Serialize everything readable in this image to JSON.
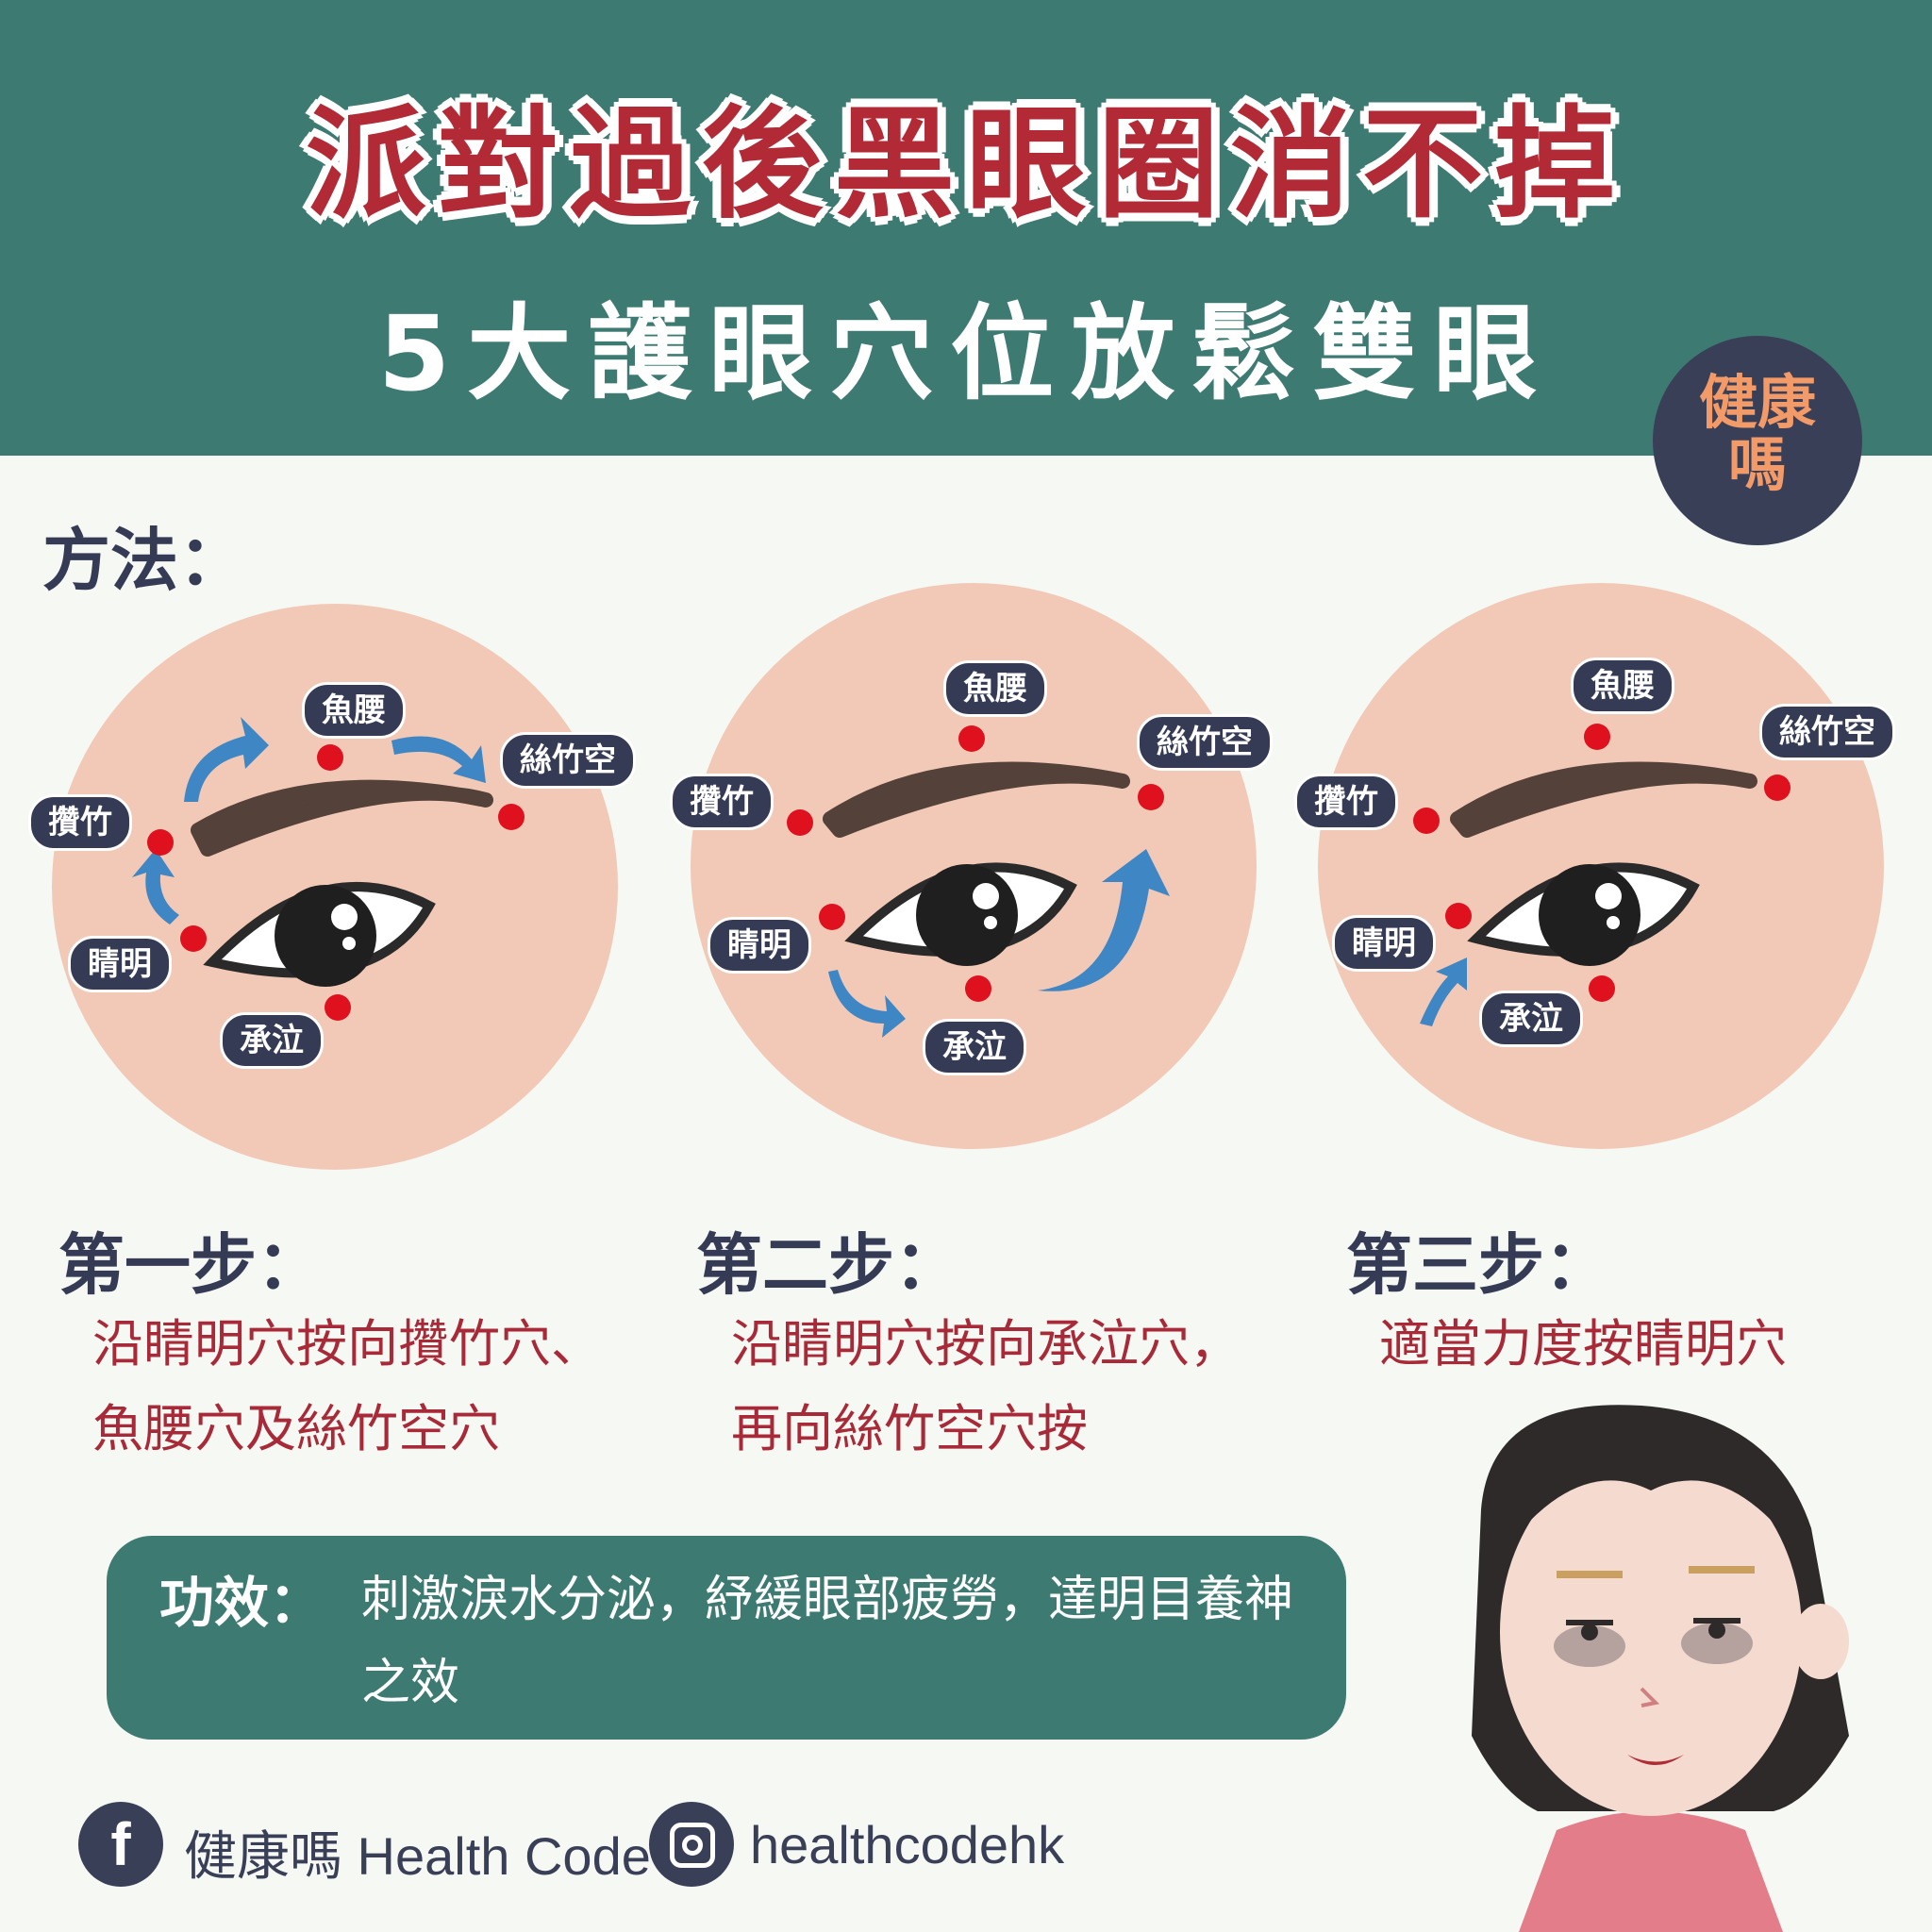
{
  "header": {
    "title": "派對過後黑眼圈消不掉",
    "subtitle": "5大護眼穴位放鬆雙眼"
  },
  "logo": {
    "line1": "健康",
    "line2": "嗎"
  },
  "method_label": "方法：",
  "acupoints": {
    "yuyao": "魚腰",
    "sizhukong": "絲竹空",
    "zanzhu": "攢竹",
    "jingming": "睛明",
    "chengqi": "承泣"
  },
  "steps": [
    {
      "title": "第一步：",
      "desc": [
        "沿睛明穴按向攢竹穴、",
        "魚腰穴及絲竹空穴"
      ]
    },
    {
      "title": "第二步：",
      "desc": [
        "沿睛明穴按向承泣穴，",
        "再向絲竹空穴按"
      ]
    },
    {
      "title": "第三步：",
      "desc": [
        "適當力度按睛明穴"
      ]
    }
  ],
  "effect": {
    "label": "功效：",
    "text": "刺激淚水分泌，紓緩眼部疲勞，達明目養神之效"
  },
  "footer": {
    "facebook_icon": "facebook-icon",
    "facebook_text": "健康嗎 Health Code",
    "instagram_icon": "instagram-icon",
    "instagram_text": "healthcodehk"
  },
  "colors": {
    "header_bg": "#3d7a72",
    "title_red": "#b22a36",
    "navy": "#353a55",
    "skin": "#f2c9b6",
    "point_red": "#e0111e",
    "arrow_blue": "#3f86c4"
  }
}
